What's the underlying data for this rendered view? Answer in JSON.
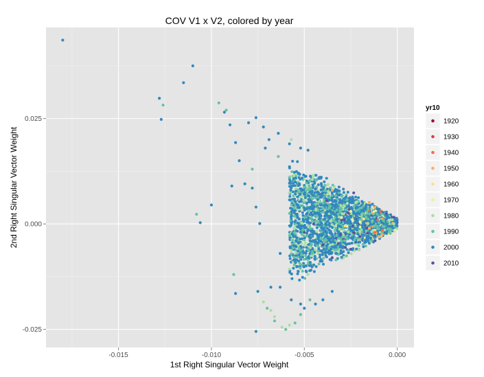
{
  "chart_data": {
    "type": "scatter",
    "title": "COV V1 x V2, colored by year",
    "xlabel": "1st Right Singular Vector Weight",
    "ylabel": "2nd Right Singular Vector Weight",
    "xlim": [
      -0.0189,
      0.0009
    ],
    "ylim": [
      -0.0293,
      0.0466
    ],
    "x_ticks": [
      -0.015,
      -0.01,
      -0.005,
      0.0
    ],
    "x_tick_labels": [
      "-0.015",
      "-0.010",
      "-0.005",
      "0.000"
    ],
    "y_ticks": [
      -0.025,
      0.0,
      0.025
    ],
    "y_tick_labels": [
      "-0.025",
      "0.000",
      "0.025"
    ],
    "grid": true,
    "legend": {
      "title": "yr10",
      "position": "right",
      "entries": [
        {
          "label": "1920",
          "color": "#9e0142"
        },
        {
          "label": "1930",
          "color": "#d53e4f"
        },
        {
          "label": "1940",
          "color": "#f46d43"
        },
        {
          "label": "1950",
          "color": "#fdae61"
        },
        {
          "label": "1960",
          "color": "#fee08b"
        },
        {
          "label": "1970",
          "color": "#e6f598"
        },
        {
          "label": "1980",
          "color": "#abdda4"
        },
        {
          "label": "1990",
          "color": "#66c2a5"
        },
        {
          "label": "2000",
          "color": "#3288bd"
        },
        {
          "label": "2010",
          "color": "#5e4fa2"
        }
      ]
    },
    "series": [
      {
        "name": "2000",
        "points": [
          [
            -0.018,
            0.0436
          ],
          [
            -0.011,
            0.0375
          ],
          [
            -0.0115,
            0.0335
          ],
          [
            -0.0128,
            0.0298
          ],
          [
            -0.0127,
            0.0248
          ],
          [
            -0.01,
            0.0045
          ],
          [
            -0.0106,
            0.0003
          ],
          [
            -0.0093,
            0.0265
          ],
          [
            -0.009,
            0.0235
          ],
          [
            -0.0087,
            0.0193
          ],
          [
            -0.008,
            0.024
          ],
          [
            -0.0076,
            0.0252
          ],
          [
            -0.0072,
            0.023
          ],
          [
            -0.0085,
            0.015
          ],
          [
            -0.0082,
            0.0095
          ],
          [
            -0.0089,
            0.009
          ],
          [
            -0.0078,
            0.0085
          ],
          [
            -0.0076,
            0.004
          ],
          [
            -0.0074,
            0.0001
          ],
          [
            -0.0075,
            -0.016
          ],
          [
            -0.0087,
            -0.0165
          ],
          [
            -0.0076,
            -0.0255
          ],
          [
            -0.0068,
            -0.015
          ],
          [
            -0.0063,
            -0.007
          ],
          [
            -0.0071,
            0.018
          ],
          [
            -0.0069,
            0.02
          ],
          [
            -0.0064,
            0.0215
          ],
          [
            -0.0058,
            0.019
          ],
          [
            -0.0052,
            0.018
          ],
          [
            -0.0048,
            0.0175
          ],
          [
            -0.0063,
            -0.015
          ],
          [
            -0.0057,
            -0.018
          ],
          [
            -0.0052,
            -0.019
          ],
          [
            -0.005,
            -0.02
          ],
          [
            -0.0044,
            -0.019
          ],
          [
            -0.004,
            -0.018
          ],
          [
            -0.0035,
            -0.016
          ]
        ]
      },
      {
        "name": "1990",
        "points": [
          [
            -0.0126,
            0.0282
          ],
          [
            -0.0096,
            0.0287
          ],
          [
            -0.0108,
            0.0023
          ],
          [
            -0.0088,
            -0.012
          ],
          [
            -0.0092,
            0.027
          ],
          [
            -0.0078,
            0.013
          ],
          [
            -0.007,
            -0.02
          ],
          [
            -0.0066,
            -0.023
          ],
          [
            -0.006,
            -0.025
          ],
          [
            -0.0055,
            -0.0235
          ],
          [
            -0.0052,
            -0.0215
          ],
          [
            -0.0064,
            0.016
          ],
          [
            -0.0047,
            -0.018
          ],
          [
            -0.0058,
            0.011
          ]
        ]
      },
      {
        "name": "1980",
        "points": [
          [
            -0.0068,
            -0.0205
          ],
          [
            -0.0066,
            -0.022
          ],
          [
            -0.0062,
            -0.0245
          ],
          [
            -0.0058,
            -0.024
          ],
          [
            -0.0057,
            0.02
          ],
          [
            -0.0072,
            -0.0185
          ],
          [
            -0.0048,
            -0.012
          ]
        ]
      },
      {
        "name": "2010",
        "points": [
          [
            -0.0045,
            0.0
          ],
          [
            -0.004,
            -0.005
          ],
          [
            -0.0035,
            -0.008
          ],
          [
            -0.003,
            0.001
          ],
          [
            -0.0025,
            -0.006
          ],
          [
            -0.005,
            -0.002
          ],
          [
            -0.002,
            -0.003
          ],
          [
            -0.0038,
            0.0055
          ]
        ]
      },
      {
        "name": "1970",
        "points": [
          [
            -0.003,
            0.0015
          ],
          [
            -0.0025,
            0.003
          ],
          [
            -0.002,
            0.0005
          ],
          [
            -0.0015,
            -0.001
          ]
        ]
      },
      {
        "name": "1960",
        "points": [
          [
            -0.0028,
            -0.0005
          ],
          [
            -0.0018,
            0.0012
          ],
          [
            -0.0012,
            -0.0015
          ]
        ]
      },
      {
        "name": "1950",
        "points": [
          [
            -0.0015,
            -0.001
          ],
          [
            -0.001,
            -0.003
          ],
          [
            -0.0035,
            0.008
          ],
          [
            -0.0008,
            -0.0025
          ]
        ]
      },
      {
        "name": "1940",
        "points": [
          [
            -0.0012,
            -0.002
          ],
          [
            -0.0008,
            -0.0015
          ]
        ]
      }
    ]
  }
}
